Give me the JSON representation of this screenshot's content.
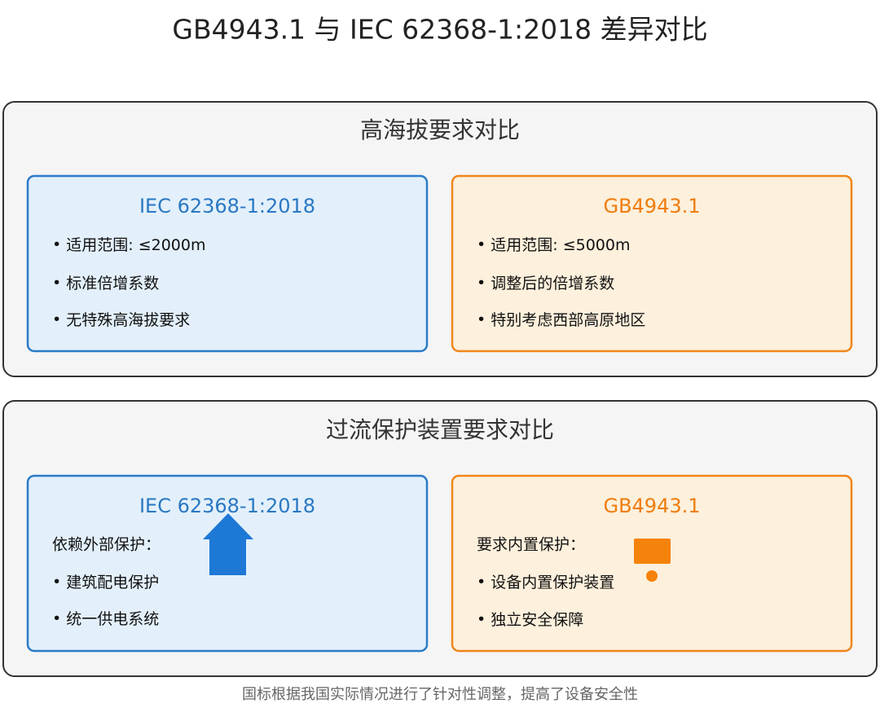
{
  "title": "GB4943.1 与 IEC 62368-1:2018 差异对比",
  "sections": [
    {
      "title": "高海拔要求对比",
      "left": {
        "title": "IEC 62368-1:2018",
        "items": [
          "适用范围: ≤2000m",
          "标准倍增系数",
          "无特殊高海拔要求"
        ]
      },
      "right": {
        "title": "GB4943.1",
        "items": [
          "适用范围: ≤5000m",
          "调整后的倍增系数",
          "特别考虑西部高原地区"
        ]
      }
    },
    {
      "title": "过流保护装置要求对比",
      "left": {
        "title": "IEC 62368-1:2018",
        "intro": "依赖外部保护：",
        "items": [
          "建筑配电保护",
          "统一供电系统"
        ]
      },
      "right": {
        "title": "GB4943.1",
        "intro": "要求内置保护：",
        "items": [
          "设备内置保护装置",
          "独立安全保障"
        ]
      }
    }
  ],
  "footer": "国标根据我国实际情况进行了针对性调整，提高了设备安全性"
}
